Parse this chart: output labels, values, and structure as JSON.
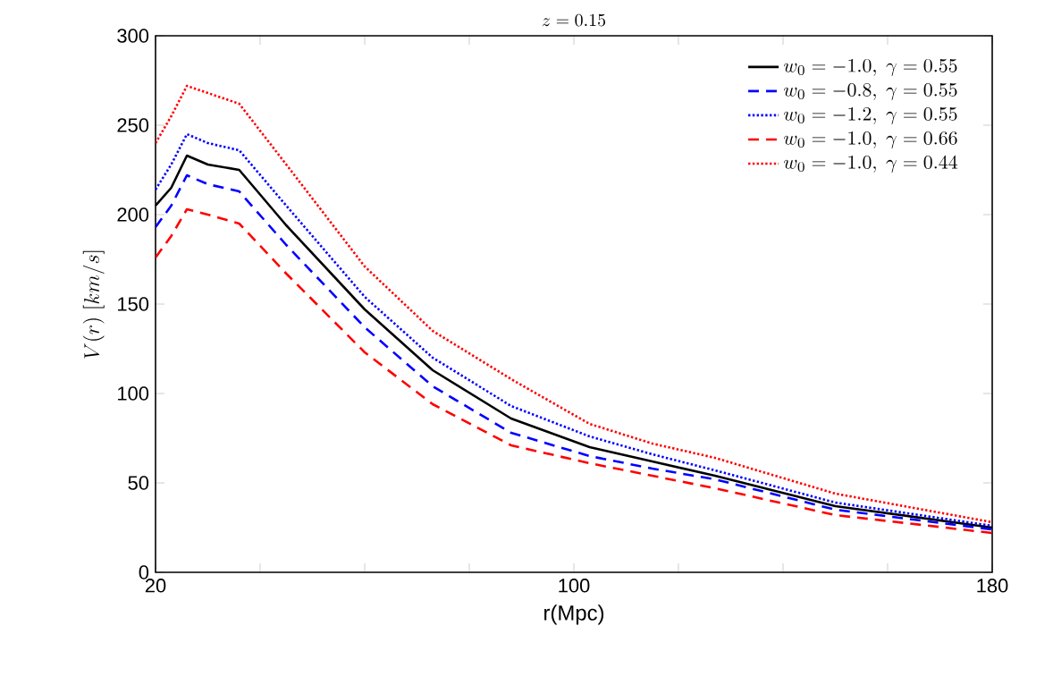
{
  "chart_data": {
    "type": "line",
    "title": "z = 0.15",
    "xlabel": "r(Mpc)",
    "ylabel": "V(r)\\ [km/s]",
    "xlim": [
      20,
      180
    ],
    "ylim": [
      0,
      300
    ],
    "xticks": [
      20,
      {
        "value": 40,
        "label": null
      },
      {
        "value": 60,
        "label": null
      },
      {
        "value": 80,
        "label": null
      },
      100,
      {
        "value": 120,
        "label": null
      },
      {
        "value": 140,
        "label": null
      },
      {
        "value": 160,
        "label": null
      },
      180
    ],
    "yticks": [
      0,
      50,
      100,
      150,
      200,
      250,
      300
    ],
    "grid": false,
    "legend": "top right",
    "marker": "none",
    "series": [
      {
        "name": "w_0 = -1.0,\\ \\gamma = 0.55",
        "color": "#000000",
        "line_style": "solid",
        "x": [
          20,
          23,
          26,
          30,
          36,
          45,
          60,
          73,
          88,
          103,
          115,
          127,
          150,
          180
        ],
        "values": [
          205,
          215,
          233,
          228,
          225,
          194,
          147,
          113,
          86,
          70,
          62,
          54,
          37,
          25
        ]
      },
      {
        "name": "w_0 = -0.8,\\ \\gamma = 0.55",
        "color": "#0000ff",
        "line_style": "dashed",
        "x": [
          20,
          23,
          26,
          30,
          36,
          45,
          60,
          73,
          88,
          103,
          115,
          127,
          150,
          180
        ],
        "values": [
          193,
          205,
          222,
          217,
          213,
          183,
          137,
          104,
          78,
          65,
          58,
          52,
          35,
          24
        ]
      },
      {
        "name": "w_0 = -1.2,\\ \\gamma = 0.55",
        "color": "#0000ff",
        "line_style": "dotted",
        "x": [
          20,
          23,
          26,
          30,
          36,
          45,
          60,
          73,
          88,
          103,
          115,
          127,
          150,
          180
        ],
        "values": [
          214,
          228,
          245,
          240,
          236,
          205,
          154,
          120,
          93,
          76,
          66,
          57,
          39,
          26
        ]
      },
      {
        "name": "w_0 = -1.0,\\ \\gamma = 0.66",
        "color": "#ff0000",
        "line_style": "dashed",
        "x": [
          20,
          23,
          26,
          30,
          36,
          45,
          60,
          73,
          88,
          103,
          115,
          127,
          150,
          180
        ],
        "values": [
          176,
          188,
          203,
          200,
          195,
          167,
          123,
          94,
          71,
          61,
          54,
          47,
          32,
          22
        ]
      },
      {
        "name": "w_0 = -1.0,\\ \\gamma = 0.44",
        "color": "#ff0000",
        "line_style": "dotted",
        "x": [
          20,
          23,
          26,
          30,
          36,
          45,
          60,
          73,
          88,
          103,
          115,
          127,
          150,
          180
        ],
        "values": [
          240,
          255,
          272,
          268,
          262,
          228,
          171,
          135,
          108,
          83,
          72,
          64,
          44,
          28
        ]
      }
    ]
  }
}
